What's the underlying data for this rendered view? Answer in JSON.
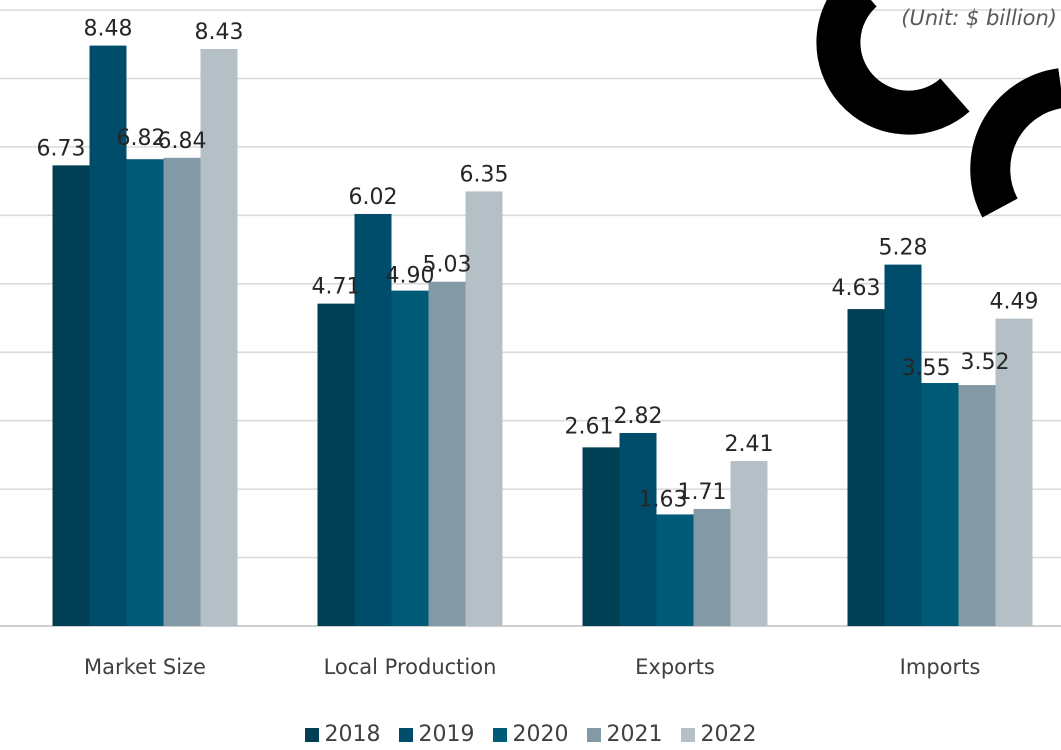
{
  "chart_data": {
    "type": "bar",
    "categories": [
      "Market Size",
      "Local Production",
      "Exports",
      "Imports"
    ],
    "series": [
      {
        "name": "2018",
        "color": "#003f54",
        "values": [
          6.73,
          4.71,
          2.61,
          4.63
        ]
      },
      {
        "name": "2019",
        "color": "#004d6b",
        "values": [
          8.48,
          6.02,
          2.82,
          5.28
        ]
      },
      {
        "name": "2020",
        "color": "#005b79",
        "values": [
          6.82,
          4.9,
          1.63,
          3.55
        ]
      },
      {
        "name": "2021",
        "color": "#8499a6",
        "values": [
          6.84,
          5.03,
          1.71,
          3.52
        ]
      },
      {
        "name": "2022",
        "color": "#b5c0c6",
        "values": [
          8.43,
          6.35,
          2.41,
          4.49
        ]
      }
    ],
    "unit_note": "(Unit: $ billion)",
    "ylim": [
      0,
      9
    ],
    "grid": true,
    "legend_position": "bottom"
  }
}
